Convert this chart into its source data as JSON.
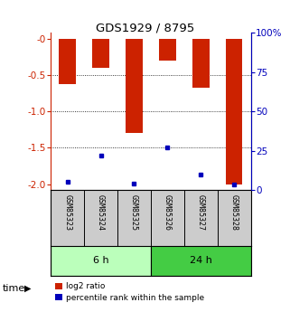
{
  "title": "GDS1929 / 8795",
  "samples": [
    "GSM85323",
    "GSM85324",
    "GSM85325",
    "GSM85326",
    "GSM85327",
    "GSM85328"
  ],
  "log2_ratio": [
    -0.63,
    -0.4,
    -1.3,
    -0.3,
    -0.68,
    -2.0
  ],
  "percentile_rank": [
    5.0,
    22.0,
    4.0,
    27.0,
    10.0,
    3.5
  ],
  "groups": [
    {
      "label": "6 h",
      "indices": [
        0,
        1,
        2
      ],
      "color": "#bbffbb"
    },
    {
      "label": "24 h",
      "indices": [
        3,
        4,
        5
      ],
      "color": "#44cc44"
    }
  ],
  "ylim_left": [
    -2.08,
    0.08
  ],
  "ylim_right": [
    -2.08,
    0.08
  ],
  "yticks_left": [
    0,
    -0.5,
    -1.0,
    -1.5,
    -2.0
  ],
  "yticks_right_vals": [
    0,
    25,
    50,
    75,
    100
  ],
  "yticks_right_pos": [
    0.0,
    -0.535,
    -1.07,
    -1.605,
    -2.14
  ],
  "bar_color": "#cc2200",
  "dot_color": "#0000bb",
  "background_color": "#ffffff",
  "panel_bg": "#cccccc",
  "bar_width": 0.5,
  "legend_red_label": "log2 ratio",
  "legend_blue_label": "percentile rank within the sample",
  "right_axis_color": "#0000bb",
  "left_axis_color": "#cc2200",
  "gridline_ticks": [
    -0.5,
    -1.0,
    -1.5
  ]
}
